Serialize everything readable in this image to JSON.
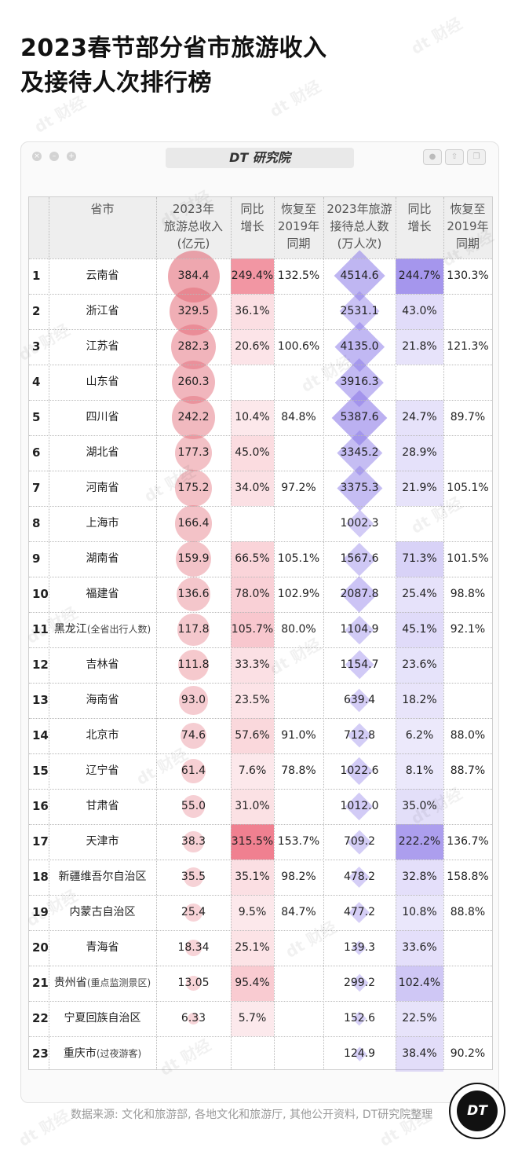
{
  "title_lines": [
    "2023春节部分省市旅游收入",
    "及接待人次排行榜"
  ],
  "window_title": "DT 研究院",
  "watermark": "dt 财经",
  "headers": {
    "province": "省市",
    "revenue": [
      "2023年",
      "旅游总收入",
      "(亿元)"
    ],
    "revenue_growth": [
      "同比",
      "增长"
    ],
    "revenue_recovery": [
      "恢复至",
      "2019年",
      "同期"
    ],
    "visitors": [
      "2023年旅游",
      "接待总人数",
      "(万人次)"
    ],
    "visitor_growth": [
      "同比",
      "增长"
    ],
    "visitor_recovery": [
      "恢复至",
      "2019年",
      "同期"
    ]
  },
  "rows": [
    {
      "rank": "1",
      "name": "云南省",
      "note": "",
      "revenue": "384.4",
      "rev_growth": "249.4%",
      "rev_recovery": "132.5%",
      "visitors": "4514.6",
      "vis_growth": "244.7%",
      "vis_recovery": "130.3%"
    },
    {
      "rank": "2",
      "name": "浙江省",
      "note": "",
      "revenue": "329.5",
      "rev_growth": "36.1%",
      "rev_recovery": "",
      "visitors": "2531.1",
      "vis_growth": "43.0%",
      "vis_recovery": ""
    },
    {
      "rank": "3",
      "name": "江苏省",
      "note": "",
      "revenue": "282.3",
      "rev_growth": "20.6%",
      "rev_recovery": "100.6%",
      "visitors": "4135.0",
      "vis_growth": "21.8%",
      "vis_recovery": "121.3%"
    },
    {
      "rank": "4",
      "name": "山东省",
      "note": "",
      "revenue": "260.3",
      "rev_growth": "",
      "rev_recovery": "",
      "visitors": "3916.3",
      "vis_growth": "",
      "vis_recovery": ""
    },
    {
      "rank": "5",
      "name": "四川省",
      "note": "",
      "revenue": "242.2",
      "rev_growth": "10.4%",
      "rev_recovery": "84.8%",
      "visitors": "5387.6",
      "vis_growth": "24.7%",
      "vis_recovery": "89.7%"
    },
    {
      "rank": "6",
      "name": "湖北省",
      "note": "",
      "revenue": "177.3",
      "rev_growth": "45.0%",
      "rev_recovery": "",
      "visitors": "3345.2",
      "vis_growth": "28.9%",
      "vis_recovery": ""
    },
    {
      "rank": "7",
      "name": "河南省",
      "note": "",
      "revenue": "175.2",
      "rev_growth": "34.0%",
      "rev_recovery": "97.2%",
      "visitors": "3375.3",
      "vis_growth": "21.9%",
      "vis_recovery": "105.1%"
    },
    {
      "rank": "8",
      "name": "上海市",
      "note": "",
      "revenue": "166.4",
      "rev_growth": "",
      "rev_recovery": "",
      "visitors": "1002.3",
      "vis_growth": "",
      "vis_recovery": ""
    },
    {
      "rank": "9",
      "name": "湖南省",
      "note": "",
      "revenue": "159.9",
      "rev_growth": "66.5%",
      "rev_recovery": "105.1%",
      "visitors": "1567.6",
      "vis_growth": "71.3%",
      "vis_recovery": "101.5%"
    },
    {
      "rank": "10",
      "name": "福建省",
      "note": "",
      "revenue": "136.6",
      "rev_growth": "78.0%",
      "rev_recovery": "102.9%",
      "visitors": "2087.8",
      "vis_growth": "25.4%",
      "vis_recovery": "98.8%"
    },
    {
      "rank": "11",
      "name": "黑龙江",
      "note": "(全省出行人数)",
      "revenue": "117.8",
      "rev_growth": "105.7%",
      "rev_recovery": "80.0%",
      "visitors": "1104.9",
      "vis_growth": "45.1%",
      "vis_recovery": "92.1%"
    },
    {
      "rank": "12",
      "name": "吉林省",
      "note": "",
      "revenue": "111.8",
      "rev_growth": "33.3%",
      "rev_recovery": "",
      "visitors": "1154.7",
      "vis_growth": "23.6%",
      "vis_recovery": ""
    },
    {
      "rank": "13",
      "name": "海南省",
      "note": "",
      "revenue": "93.0",
      "rev_growth": "23.5%",
      "rev_recovery": "",
      "visitors": "639.4",
      "vis_growth": "18.2%",
      "vis_recovery": ""
    },
    {
      "rank": "14",
      "name": "北京市",
      "note": "",
      "revenue": "74.6",
      "rev_growth": "57.6%",
      "rev_recovery": "91.0%",
      "visitors": "712.8",
      "vis_growth": "6.2%",
      "vis_recovery": "88.0%"
    },
    {
      "rank": "15",
      "name": "辽宁省",
      "note": "",
      "revenue": "61.4",
      "rev_growth": "7.6%",
      "rev_recovery": "78.8%",
      "visitors": "1022.6",
      "vis_growth": "8.1%",
      "vis_recovery": "88.7%"
    },
    {
      "rank": "16",
      "name": "甘肃省",
      "note": "",
      "revenue": "55.0",
      "rev_growth": "31.0%",
      "rev_recovery": "",
      "visitors": "1012.0",
      "vis_growth": "35.0%",
      "vis_recovery": ""
    },
    {
      "rank": "17",
      "name": "天津市",
      "note": "",
      "revenue": "38.3",
      "rev_growth": "315.5%",
      "rev_recovery": "153.7%",
      "visitors": "709.2",
      "vis_growth": "222.2%",
      "vis_recovery": "136.7%"
    },
    {
      "rank": "18",
      "name": "新疆维吾尔自治区",
      "note": "",
      "revenue": "35.5",
      "rev_growth": "35.1%",
      "rev_recovery": "98.2%",
      "visitors": "478.2",
      "vis_growth": "32.8%",
      "vis_recovery": "158.8%"
    },
    {
      "rank": "19",
      "name": "内蒙古自治区",
      "note": "",
      "revenue": "25.4",
      "rev_growth": "9.5%",
      "rev_recovery": "84.7%",
      "visitors": "477.2",
      "vis_growth": "10.8%",
      "vis_recovery": "88.8%"
    },
    {
      "rank": "20",
      "name": "青海省",
      "note": "",
      "revenue": "18.34",
      "rev_growth": "25.1%",
      "rev_recovery": "",
      "visitors": "139.3",
      "vis_growth": "33.6%",
      "vis_recovery": ""
    },
    {
      "rank": "21",
      "name": "贵州省",
      "note": "(重点监测景区)",
      "revenue": "13.05",
      "rev_growth": "95.4%",
      "rev_recovery": "",
      "visitors": "299.2",
      "vis_growth": "102.4%",
      "vis_recovery": ""
    },
    {
      "rank": "22",
      "name": "宁夏回族自治区",
      "note": "",
      "revenue": "6.33",
      "rev_growth": "5.7%",
      "rev_recovery": "",
      "visitors": "152.6",
      "vis_growth": "22.5%",
      "vis_recovery": ""
    },
    {
      "rank": "23",
      "name": "重庆市",
      "note": "(过夜游客)",
      "revenue": "",
      "rev_growth": "",
      "rev_recovery": "",
      "visitors": "124.9",
      "vis_growth": "38.4%",
      "vis_recovery": "90.2%"
    }
  ],
  "chart_data": {
    "type": "table",
    "columns": [
      "省市",
      "2023年旅游总收入(亿元)",
      "同比增长",
      "恢复至2019年同期",
      "2023年旅游接待总人数(万人次)",
      "同比增长",
      "恢复至2019年同期"
    ],
    "revenue_max": 384.4,
    "visitors_max": 5387.6,
    "growth_max": 315.5
  },
  "colors": {
    "revenue_mark": "#e36d7a",
    "visitor_mark": "#8d7ce8",
    "header_bg": "#eeeeee"
  },
  "footer": "数据来源: 文化和旅游部, 各地文化和旅游厅, 其他公开资料, DT研究院整理",
  "logo_text": "DT"
}
